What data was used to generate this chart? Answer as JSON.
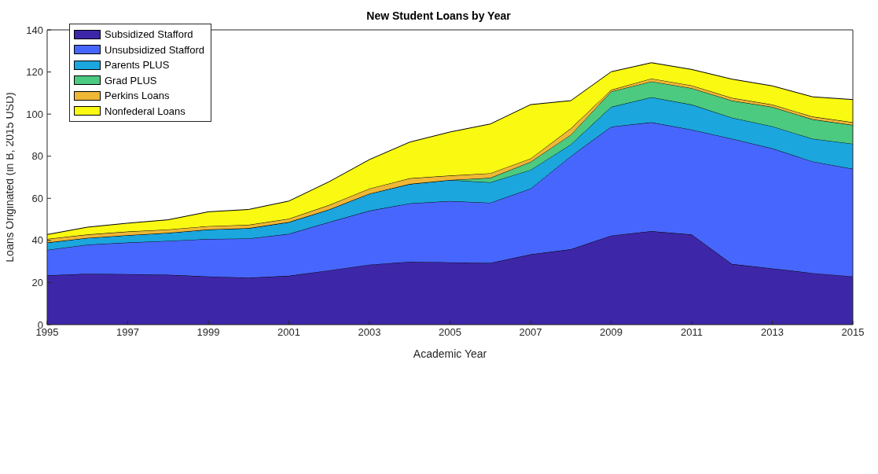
{
  "chart_data": {
    "type": "area",
    "stacked": true,
    "title": "New Student Loans by Year",
    "xlabel": "Academic Year",
    "ylabel": "Loans Originated (in B, 2015 USD)",
    "x": [
      1995,
      1996,
      1997,
      1998,
      1999,
      2000,
      2001,
      2002,
      2003,
      2004,
      2005,
      2006,
      2007,
      2008,
      2009,
      2010,
      2011,
      2012,
      2013,
      2014,
      2015
    ],
    "series": [
      {
        "name": "Subsidized Stafford",
        "color": "#3e26a8",
        "values": [
          23.4,
          24.2,
          24.0,
          23.7,
          22.9,
          22.3,
          23.2,
          25.8,
          28.5,
          29.9,
          29.6,
          29.3,
          33.4,
          35.8,
          42.3,
          44.4,
          42.8,
          28.8,
          26.7,
          24.5,
          22.9
        ]
      },
      {
        "name": "Unsubsidized Stafford",
        "color": "#4766fe",
        "values": [
          12.1,
          13.8,
          15.0,
          16.1,
          17.8,
          18.6,
          19.9,
          22.9,
          25.6,
          27.7,
          29.1,
          28.6,
          31.2,
          44.2,
          51.7,
          51.7,
          49.8,
          59.5,
          57.0,
          53.0,
          51.1
        ]
      },
      {
        "name": "Parents PLUS",
        "color": "#1ba6dd",
        "values": [
          3.5,
          3.2,
          3.5,
          3.8,
          4.5,
          4.9,
          5.6,
          6.0,
          8.1,
          9.2,
          10.0,
          9.7,
          8.9,
          5.6,
          9.4,
          11.9,
          11.9,
          10.0,
          10.5,
          10.8,
          11.9
        ]
      },
      {
        "name": "Grad PLUS",
        "color": "#4bca80",
        "values": [
          0,
          0,
          0,
          0,
          0,
          0,
          0,
          0,
          0,
          0,
          0,
          2.1,
          3.8,
          4.6,
          7.3,
          7.5,
          7.8,
          8.1,
          9.2,
          9.2,
          8.9
        ]
      },
      {
        "name": "Perkins Loans",
        "color": "#efb736",
        "values": [
          1.7,
          1.6,
          1.7,
          1.6,
          1.6,
          1.6,
          1.6,
          2.1,
          2.4,
          2.7,
          2.1,
          2.2,
          1.6,
          3.0,
          0.8,
          1.4,
          1.3,
          1.3,
          1.1,
          1.3,
          1.3
        ]
      },
      {
        "name": "Nonfederal Loans",
        "color": "#f9f912",
        "values": [
          2.1,
          3.5,
          4.0,
          4.6,
          6.8,
          7.3,
          8.4,
          11.1,
          13.8,
          17.2,
          20.7,
          23.4,
          25.6,
          13.2,
          8.6,
          7.5,
          7.6,
          8.9,
          8.9,
          9.4,
          10.8
        ]
      }
    ],
    "xlim": [
      1995,
      2015
    ],
    "xticks": [
      1995,
      1997,
      1999,
      2001,
      2003,
      2005,
      2007,
      2009,
      2011,
      2013,
      2015
    ],
    "ylim": [
      0,
      140
    ],
    "yticks": [
      0,
      20,
      40,
      60,
      80,
      100,
      120,
      140
    ],
    "grid": false,
    "legend": "top left"
  }
}
